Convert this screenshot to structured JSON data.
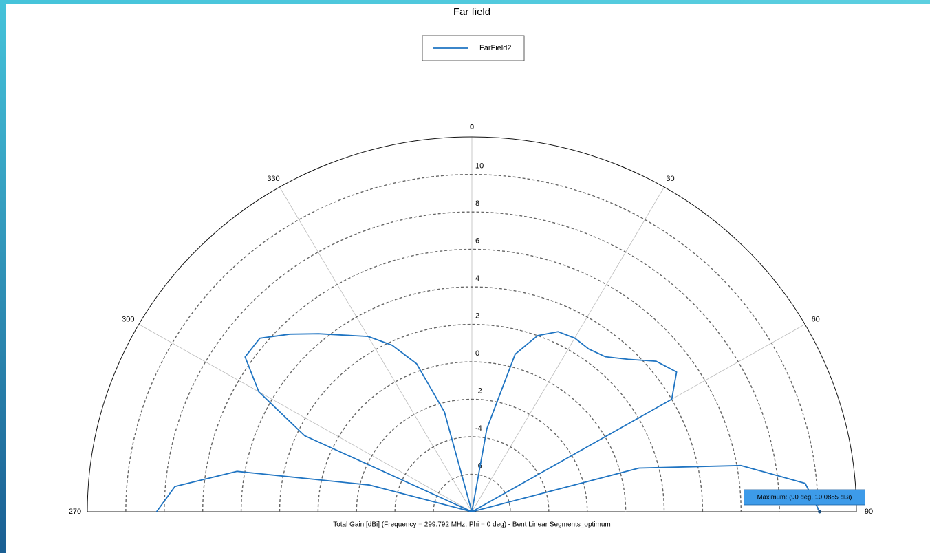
{
  "chart_data": {
    "type": "polar",
    "title": "Far field",
    "axis_label": "Total Gain [dBi] (Frequency = 299.792 MHz; Phi = 0 deg) - Bent Linear Segments_optimum",
    "rlim": [
      -8,
      12
    ],
    "rticks": [
      -6,
      -4,
      -2,
      0,
      2,
      4,
      6,
      8,
      10
    ],
    "thetalim": [
      -90,
      90
    ],
    "thetaticks": [
      {
        "value": -90,
        "label": "270"
      },
      {
        "value": -60,
        "label": "300"
      },
      {
        "value": -30,
        "label": "330"
      },
      0,
      30,
      60,
      90
    ],
    "grid": true,
    "legend": "top",
    "x": [
      -90,
      -85,
      -80,
      -75,
      -70,
      -65,
      -60,
      -55,
      -50,
      -45,
      -40,
      -35,
      -30,
      -25,
      -20,
      -15,
      -10,
      -5,
      0,
      5,
      10,
      15,
      20,
      25,
      30,
      35,
      40,
      45,
      50,
      55,
      60,
      65,
      70,
      75,
      80,
      85,
      90
    ],
    "series": [
      {
        "name": "FarField2",
        "color": "#1f74c2",
        "values": [
          8.4,
          7.5,
          4.4,
          -2.5,
          -8,
          1.6,
          4.8,
          6.4,
          6.4,
          5.4,
          4.4,
          3.5,
          2.8,
          1.8,
          0.4,
          -2.5,
          -8,
          -8,
          -8,
          -8,
          -3.5,
          0.7,
          2.0,
          2.6,
          2.7,
          2.6,
          2.8,
          3.5,
          4.5,
          5.0,
          4.0,
          -8,
          -8,
          1.0,
          6.2,
          9.4,
          10.0885
        ]
      }
    ],
    "annotation": "Maximum: (90 deg, 10.0885 dBi)"
  }
}
